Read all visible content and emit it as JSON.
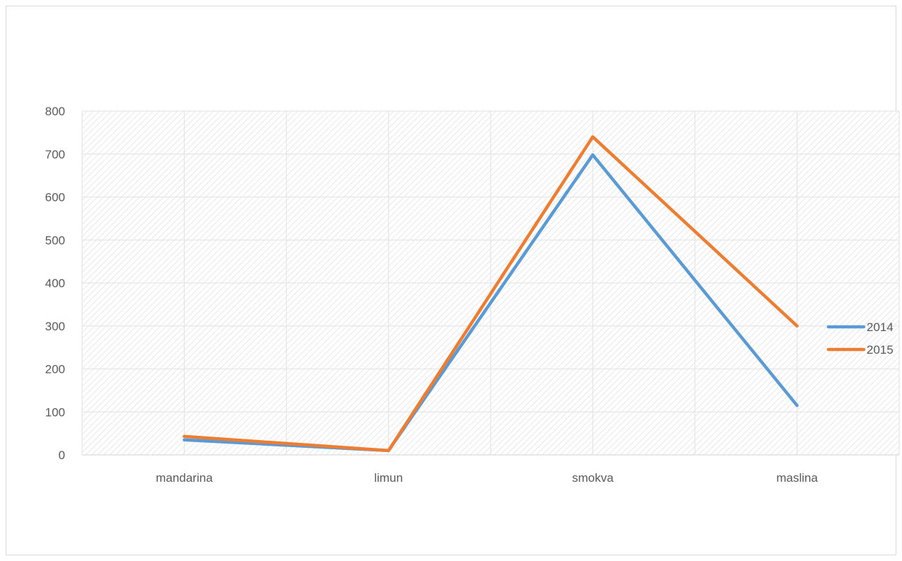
{
  "chart_data": {
    "type": "line",
    "categories": [
      "mandarina",
      "limun",
      "smokva",
      "maslina"
    ],
    "series": [
      {
        "name": "2014",
        "values": [
          35,
          10,
          698,
          115
        ],
        "color": "#5b9bd5"
      },
      {
        "name": "2015",
        "values": [
          43,
          10,
          740,
          300
        ],
        "color": "#ed7d31"
      }
    ],
    "ylim": [
      0,
      800
    ],
    "yticks": [
      0,
      100,
      200,
      300,
      400,
      500,
      600,
      700,
      800
    ],
    "grid": true,
    "plot_pattern": "diagonal-hatch",
    "legend_position": "right"
  }
}
